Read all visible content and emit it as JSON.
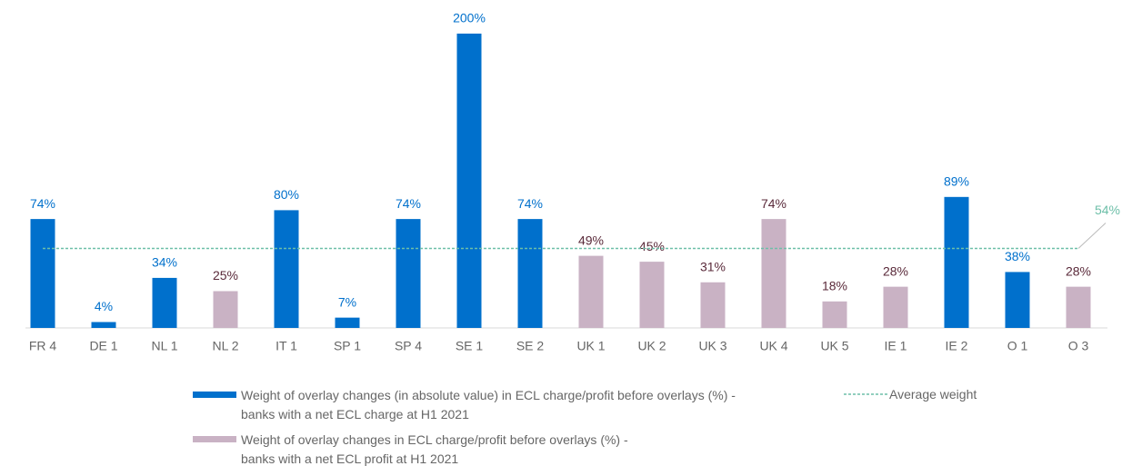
{
  "chart_data": {
    "type": "bar",
    "categories": [
      "FR 4",
      "DE 1",
      "NL 1",
      "NL 2",
      "IT 1",
      "SP 1",
      "SP 4",
      "SE 1",
      "SE 2",
      "UK 1",
      "UK 2",
      "UK 3",
      "UK 4",
      "UK 5",
      "IE 1",
      "IE 2",
      "O 1",
      "O 3"
    ],
    "series": [
      {
        "name": "Weight of overlay changes (in absolute value) in ECL charge/profit before overlays (%) - banks with a net ECL charge at H1 2021",
        "color": "#0070cc",
        "label_color": "#0070cc",
        "values": [
          74,
          4,
          34,
          null,
          80,
          7,
          74,
          200,
          74,
          null,
          null,
          null,
          null,
          null,
          null,
          89,
          38,
          null
        ],
        "value_labels": [
          "74%",
          "4%",
          "34%",
          null,
          "80%",
          "7%",
          "74%",
          "200%",
          "74%",
          null,
          null,
          null,
          null,
          null,
          null,
          "89%",
          "38%",
          null
        ]
      },
      {
        "name": "Weight of overlay changes in ECL charge/profit before overlays (%) - banks with a net ECL profit at H1 2021",
        "color": "#c9b2c4",
        "label_color": "#5a2a3a",
        "values": [
          null,
          null,
          null,
          25,
          null,
          null,
          null,
          null,
          null,
          49,
          45,
          31,
          74,
          18,
          28,
          null,
          null,
          28
        ],
        "value_labels": [
          null,
          null,
          null,
          "25%",
          null,
          null,
          null,
          null,
          null,
          "49%",
          "45%",
          "31%",
          "74%",
          "18%",
          "28%",
          null,
          null,
          "28%"
        ]
      }
    ],
    "average": {
      "name": "Average weight",
      "value": 54,
      "value_label": "54%",
      "color": "#6dbfa8"
    },
    "ylim": [
      0,
      200
    ]
  }
}
